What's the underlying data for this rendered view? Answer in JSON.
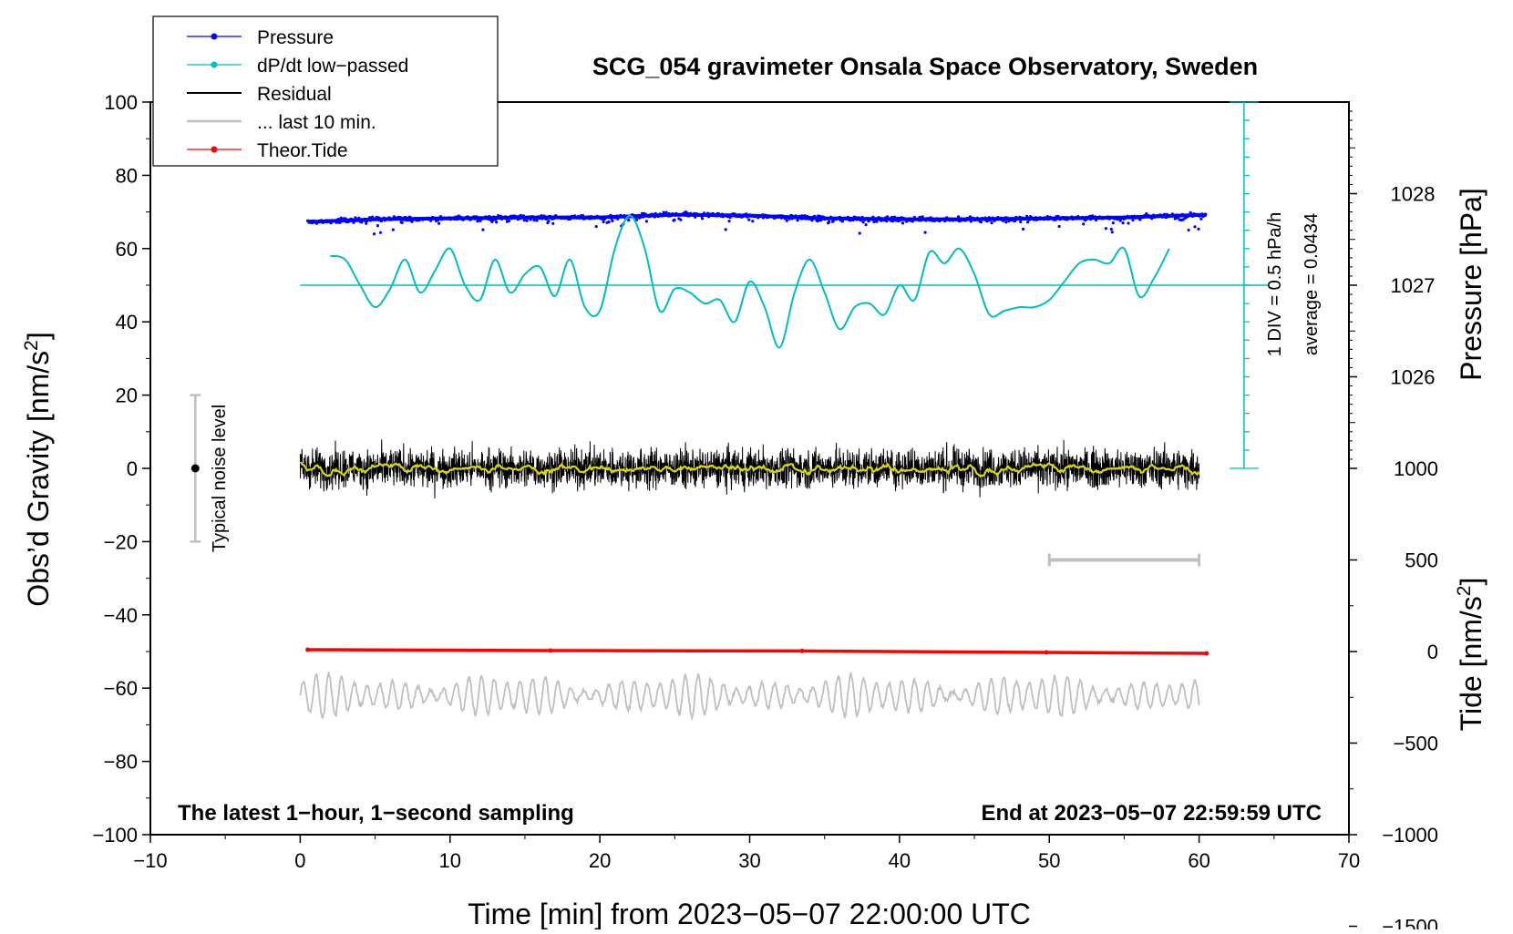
{
  "chart_data": {
    "type": "line",
    "title": "SCG_054 gravimeter Onsala Space Observatory, Sweden",
    "xlabel": "Time [min] from 2023−05−07 22:00:00 UTC",
    "ylabel": "Obs’d Gravity [nm/s²]",
    "ylabel_parts": [
      "Obs’d Gravity [nm/s",
      "2",
      "]"
    ],
    "y2label_pressure": "Pressure [hPa]",
    "y2label_tide": "Tide [nm/s²]",
    "y2label_tide_parts": [
      "Tide [nm/s",
      "2",
      "]"
    ],
    "xlim": [
      -10,
      70
    ],
    "ylim": [
      -100,
      100
    ],
    "xticks": [
      -10,
      0,
      10,
      20,
      30,
      40,
      50,
      60,
      70
    ],
    "xtick_labels": [
      "−10",
      "0",
      "10",
      "20",
      "30",
      "40",
      "50",
      "60",
      "70"
    ],
    "yticks": [
      -100,
      -80,
      -60,
      -40,
      -20,
      0,
      20,
      40,
      60,
      80,
      100
    ],
    "ytick_labels": [
      "−100",
      "−80",
      "−60",
      "−40",
      "−20",
      "0",
      "20",
      "40",
      "60",
      "80",
      "100"
    ],
    "pressure_axis": {
      "ticks": [
        1026,
        1027,
        1028
      ],
      "tick_labels": [
        "1026",
        "1027",
        "1028"
      ],
      "gravity_per_hpa": 25,
      "ref_hpa": 1027,
      "ref_gravity": 50
    },
    "tide_axis": {
      "ticks": [
        -1500,
        -1000,
        -500,
        0,
        500,
        1000
      ],
      "tick_labels": [
        "−1500",
        "−1000",
        "−500",
        "0",
        "500",
        "1000"
      ],
      "gravity_per_unit": 0.05,
      "ref_tide": 0,
      "ref_gravity": -50
    },
    "legend": [
      {
        "label": "Pressure",
        "color": "#0000ff",
        "marker": "dot"
      },
      {
        "label": "dP/dt low−passed",
        "color": "#00bfbf",
        "marker": "dot"
      },
      {
        "label": "Residual",
        "color": "#000000",
        "marker": "none"
      },
      {
        "label": "... last 10 min.",
        "color": "#bfbfbf",
        "marker": "none"
      },
      {
        "label": "Theor.Tide",
        "color": "#ff0000",
        "marker": "dot"
      }
    ],
    "annotations": {
      "bottom_left": "The latest 1−hour, 1−second sampling",
      "bottom_right": "End at 2023−05−07 22:59:59 UTC",
      "div_scale": "1 DIV = 0.5 hPa/h",
      "average": "average = 0.0434",
      "noise": "Typical noise level"
    },
    "noise_bar": {
      "x": -7,
      "center": 0,
      "low": -20,
      "high": 20
    },
    "last10_bar": {
      "x_start": 50,
      "x_end": 60,
      "tide": 500
    },
    "dpdt_scale": {
      "x": 63,
      "ref": 50,
      "bottom": 0,
      "top": 100,
      "div": 5
    },
    "series": [
      {
        "name": "Pressure",
        "color": "#0000ff",
        "axis": "pressure",
        "x": [
          0.5,
          5,
          10,
          15,
          20,
          25,
          30,
          35,
          40,
          45,
          50,
          55,
          60.5
        ],
        "values": [
          1027.69,
          1027.72,
          1027.73,
          1027.74,
          1027.74,
          1027.77,
          1027.76,
          1027.73,
          1027.72,
          1027.72,
          1027.73,
          1027.74,
          1027.77
        ]
      },
      {
        "name": "dP/dt low−passed",
        "color": "#00bfbf",
        "axis": "gravity",
        "x": [
          2,
          3,
          4,
          5,
          6,
          7,
          8,
          9,
          10,
          11,
          12,
          13,
          14,
          15,
          16,
          17,
          18,
          19,
          20,
          21,
          22,
          23,
          24,
          25,
          26,
          27,
          28,
          29,
          30,
          31,
          32,
          33,
          34,
          35,
          36,
          37,
          38,
          39,
          40,
          41,
          42,
          43,
          44,
          45,
          46,
          47,
          48,
          49,
          50,
          51,
          52,
          53,
          54,
          55,
          56,
          57,
          58
        ],
        "values": [
          58,
          57,
          50,
          44,
          49,
          57,
          48,
          54,
          60,
          50,
          46,
          57,
          48,
          53,
          55,
          47,
          57,
          44,
          43,
          60,
          69,
          60,
          43,
          49,
          48,
          45,
          46,
          40,
          51,
          44,
          33,
          48,
          57,
          48,
          38,
          44,
          45,
          42,
          50,
          46,
          59,
          56,
          60,
          53,
          42,
          43,
          44,
          44,
          46,
          51,
          56,
          57,
          56,
          60,
          47,
          52,
          60
        ]
      },
      {
        "name": "Residual",
        "color": "#000000",
        "axis": "gravity",
        "x": [
          0,
          60
        ],
        "values": [
          0,
          0
        ]
      },
      {
        "name": "Residual smoothed",
        "color": "#d9d900",
        "axis": "gravity",
        "x": [
          0,
          60
        ],
        "values": [
          0,
          0
        ]
      },
      {
        "name": "... last 10 min.",
        "color": "#bfbfbf",
        "axis": "gravity",
        "x": [
          0,
          60
        ],
        "values": [
          -62,
          -62
        ]
      },
      {
        "name": "Theor.Tide",
        "color": "#ff0000",
        "axis": "tide",
        "x": [
          0.5,
          16.7,
          33.5,
          49.8,
          60.5
        ],
        "values": [
          10,
          5,
          3,
          -5,
          -10
        ]
      }
    ]
  }
}
